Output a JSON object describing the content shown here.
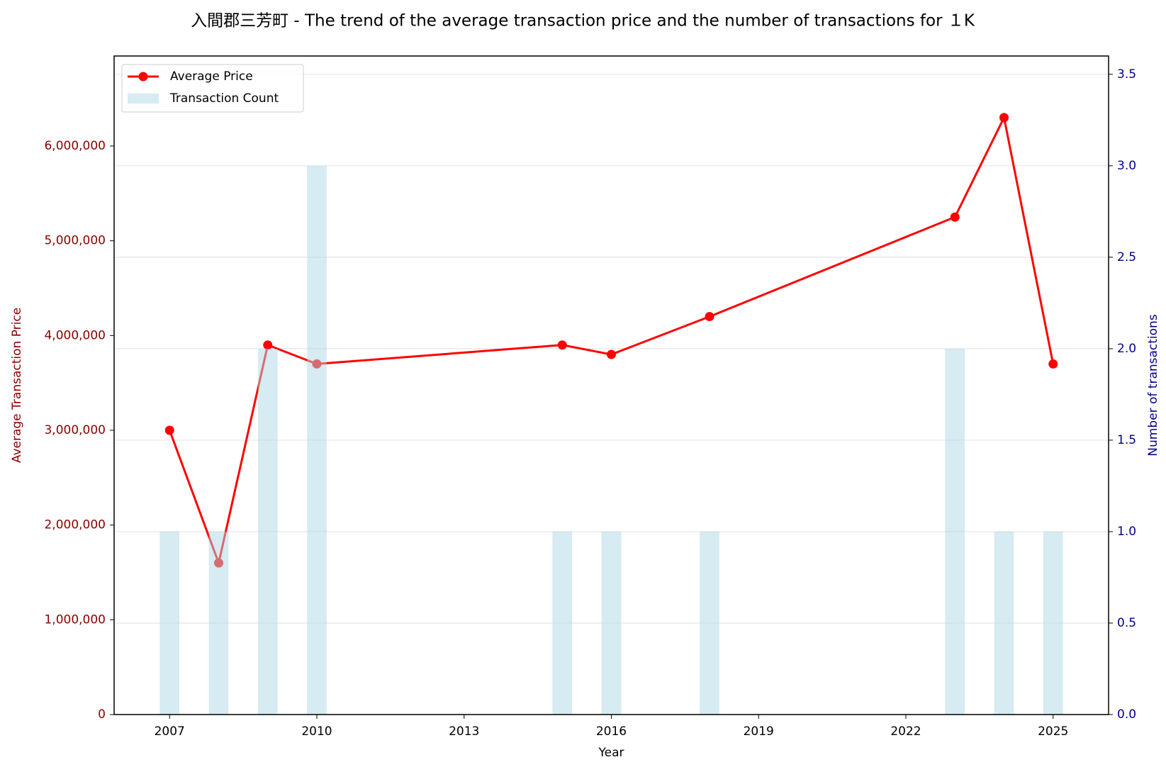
{
  "chart_data": {
    "type": "line_bar",
    "title": "入間郡三芳町 - The trend of the average transaction price and the number of transactions for １K",
    "x_label": "Year",
    "y_label": "Average Transaction Price",
    "y2_label": "Number of transactions",
    "x": [
      2007,
      2008,
      2009,
      2010,
      2015,
      2016,
      2018,
      2023,
      2024,
      2025
    ],
    "series": [
      {
        "name": "Average Price",
        "color": "#ff0000",
        "type": "line",
        "values": [
          3000000,
          1600000,
          3900000,
          3700000,
          3900000,
          3800000,
          4200000,
          5250000,
          6300000,
          3700000
        ]
      },
      {
        "name": "Transaction Count",
        "color": "#add8e6",
        "type": "bar",
        "axis": "y2",
        "values": [
          1,
          1,
          2,
          3,
          1,
          1,
          1,
          2,
          1,
          1
        ]
      }
    ],
    "xlim": [
      2005.87,
      2026.13
    ],
    "xticks": [
      2007,
      2010,
      2013,
      2016,
      2019,
      2022,
      2025
    ],
    "ylim": [
      0,
      6950000
    ],
    "yticks": [
      0,
      {
        "value": 1000000,
        "label": "1,000,000"
      },
      {
        "value": 2000000,
        "label": "2,000,000"
      },
      {
        "value": 3000000,
        "label": "3,000,000"
      },
      {
        "value": 4000000,
        "label": "4,000,000"
      },
      {
        "value": 5000000,
        "label": "5,000,000"
      },
      {
        "value": 6000000,
        "label": "6,000,000"
      }
    ],
    "y2lim": [
      0,
      3.6
    ],
    "y2ticks": [
      {
        "value": 0,
        "label": "0.0"
      },
      {
        "value": 0.5,
        "label": "0.5"
      },
      {
        "value": 1,
        "label": "1.0"
      },
      {
        "value": 1.5,
        "label": "1.5"
      },
      {
        "value": 2,
        "label": "2.0"
      },
      {
        "value": 2.5,
        "label": "2.5"
      },
      {
        "value": 3,
        "label": "3.0"
      },
      {
        "value": 3.5,
        "label": "3.5"
      }
    ],
    "y_color": "#8b0000",
    "y2_color": "#00008b",
    "grid": true,
    "legend": "upper left"
  }
}
